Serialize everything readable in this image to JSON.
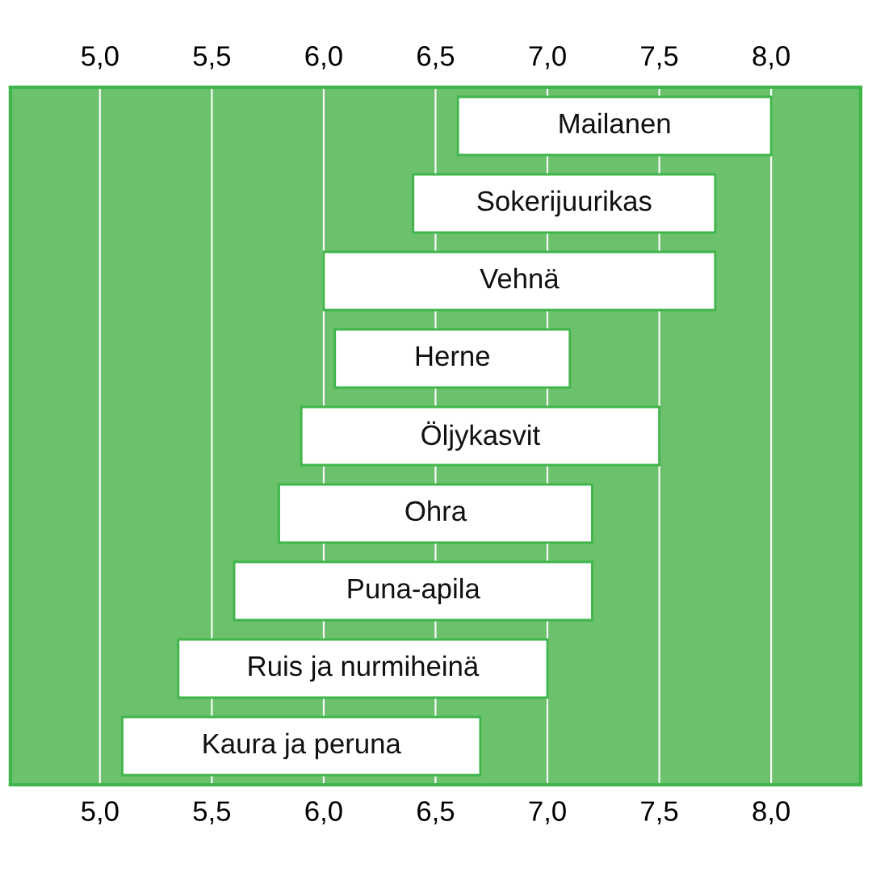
{
  "chart_data": {
    "type": "bar",
    "orientation": "horizontal",
    "categories": [
      "Mailanen",
      "Sokerijuurikas",
      "Vehnä",
      "Herne",
      "Öljykasvit",
      "Ohra",
      "Puna-apila",
      "Ruis ja nurmiheinä",
      "Kaura ja peruna"
    ],
    "base": [
      6.6,
      6.4,
      6.0,
      6.05,
      5.9,
      5.8,
      5.6,
      5.35,
      5.1
    ],
    "values": [
      1.4,
      1.35,
      1.75,
      1.05,
      1.6,
      1.4,
      1.6,
      1.65,
      1.6
    ],
    "color": "#ffffff",
    "xlim": [
      4.6,
      8.4
    ],
    "xticks": [
      {
        "value": 5.0,
        "label": "5,0"
      },
      {
        "value": 5.5,
        "label": "5,5"
      },
      {
        "value": 6.0,
        "label": "6,0"
      },
      {
        "value": 6.5,
        "label": "6,5"
      },
      {
        "value": 7.0,
        "label": "7,0"
      },
      {
        "value": 7.5,
        "label": "7,5"
      },
      {
        "value": 8.0,
        "label": "8,0"
      }
    ],
    "x2lim": [
      4.6,
      8.4
    ],
    "x2ticks": [
      {
        "value": 5.0,
        "label": "5,0"
      },
      {
        "value": 5.5,
        "label": "5,5"
      },
      {
        "value": 6.0,
        "label": "6,0"
      },
      {
        "value": 6.5,
        "label": "6,5"
      },
      {
        "value": 7.0,
        "label": "7,0"
      },
      {
        "value": 7.5,
        "label": "7,5"
      },
      {
        "value": 8.0,
        "label": "8,0"
      }
    ],
    "grid": "x",
    "tick_labels": "x"
  }
}
